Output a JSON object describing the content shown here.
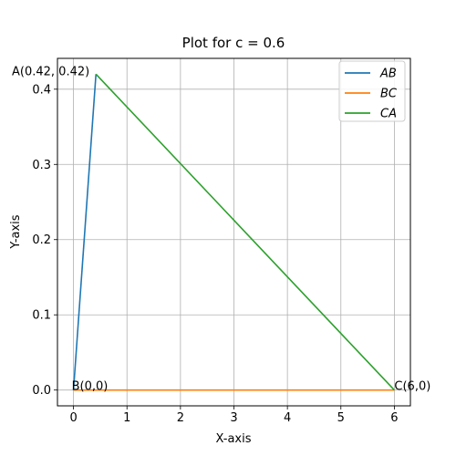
{
  "chart_data": {
    "type": "line",
    "title": "Plot for c = 0.6",
    "xlabel": "X-axis",
    "ylabel": "Y-axis",
    "xlim": [
      -0.3,
      6.3
    ],
    "ylim": [
      -0.021,
      0.441
    ],
    "xticks": [
      0,
      1,
      2,
      3,
      4,
      5,
      6
    ],
    "xtick_labels": [
      "0",
      "1",
      "2",
      "3",
      "4",
      "5",
      "6"
    ],
    "yticks": [
      0.0,
      0.1,
      0.2,
      0.3,
      0.4
    ],
    "ytick_labels": [
      "0.0",
      "0.1",
      "0.2",
      "0.3",
      "0.4"
    ],
    "grid": true,
    "legend_position": "top-right",
    "series": [
      {
        "name": "AB",
        "color": "#1f77b4",
        "x": [
          0.42,
          0
        ],
        "y": [
          0.42,
          0
        ]
      },
      {
        "name": "BC",
        "color": "#ff7f0e",
        "x": [
          0,
          6
        ],
        "y": [
          0,
          0
        ]
      },
      {
        "name": "CA",
        "color": "#2ca02c",
        "x": [
          6,
          0.42
        ],
        "y": [
          0,
          0.42
        ]
      }
    ],
    "annotations": [
      {
        "text": "A(0.42, 0.42)",
        "x": 0.42,
        "y": 0.42
      },
      {
        "text": "B(0,0)",
        "x": 0,
        "y": 0
      },
      {
        "text": "C(6,0)",
        "x": 6,
        "y": 0
      }
    ]
  }
}
